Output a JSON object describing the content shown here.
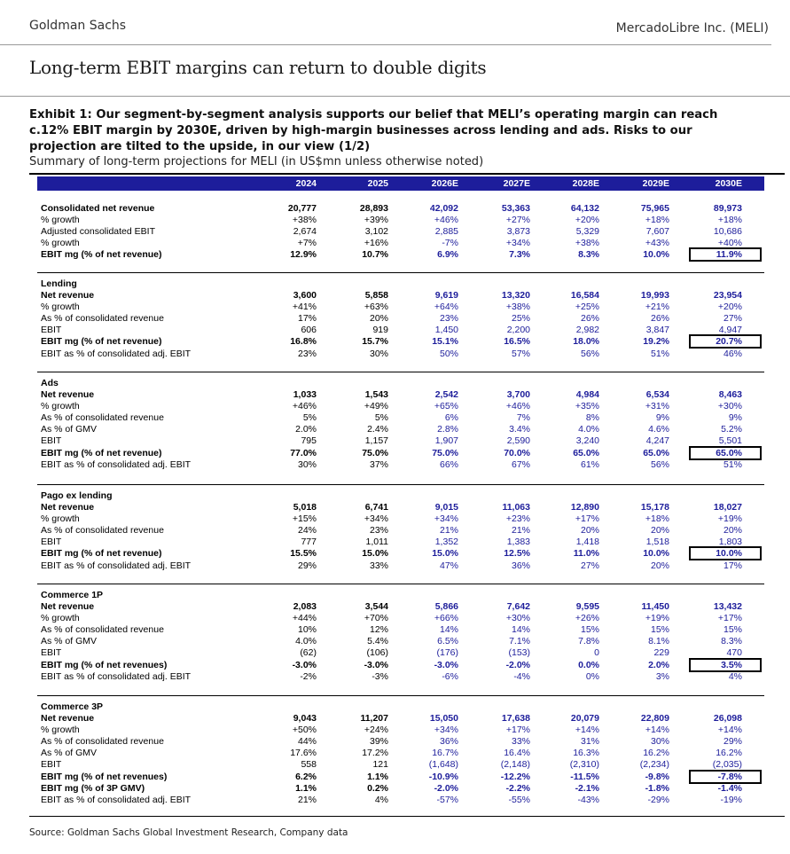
{
  "header": {
    "brand": "Goldman Sachs",
    "company": "MercadoLibre Inc. (MELI)"
  },
  "page_title": "Long-term EBIT margins can return to double digits",
  "exhibit": "Exhibit 1: Our segment-by-segment analysis supports our belief that MELI’s operating margin can reach c.12% EBIT margin by 2030E, driven by high-margin businesses across lending and ads. Risks to our projection are tilted to the upside, in our view (1/2)",
  "subtitle": "Summary of long-term projections for MELI (in US$mn unless otherwise noted)",
  "columns": [
    "2024",
    "2025",
    "2026E",
    "2027E",
    "2028E",
    "2029E",
    "2030E"
  ],
  "sections": [
    {
      "title": "",
      "rows": [
        {
          "label": "Consolidated net revenue",
          "bold": true,
          "values": [
            "20,777",
            "28,893",
            "42,092",
            "53,363",
            "64,132",
            "75,965",
            "89,973"
          ]
        },
        {
          "label": "% growth",
          "values": [
            "+38%",
            "+39%",
            "+46%",
            "+27%",
            "+20%",
            "+18%",
            "+18%"
          ]
        },
        {
          "label": "Adjusted consolidated EBIT",
          "values": [
            "2,674",
            "3,102",
            "2,885",
            "3,873",
            "5,329",
            "7,607",
            "10,686"
          ]
        },
        {
          "label": "% growth",
          "values": [
            "+7%",
            "+16%",
            "-7%",
            "+34%",
            "+38%",
            "+43%",
            "+40%"
          ]
        },
        {
          "label": "EBIT mg (% of net revenue)",
          "bold": true,
          "highlight": true,
          "values": [
            "12.9%",
            "10.7%",
            "6.9%",
            "7.3%",
            "8.3%",
            "10.0%",
            "11.9%"
          ]
        }
      ]
    },
    {
      "title": "Lending",
      "rows": [
        {
          "label": "Net revenue",
          "bold": true,
          "values": [
            "3,600",
            "5,858",
            "9,619",
            "13,320",
            "16,584",
            "19,993",
            "23,954"
          ]
        },
        {
          "label": "% growth",
          "values": [
            "+41%",
            "+63%",
            "+64%",
            "+38%",
            "+25%",
            "+21%",
            "+20%"
          ]
        },
        {
          "label": "As % of consolidated revenue",
          "values": [
            "17%",
            "20%",
            "23%",
            "25%",
            "26%",
            "26%",
            "27%"
          ]
        },
        {
          "label": "EBIT",
          "values": [
            "606",
            "919",
            "1,450",
            "2,200",
            "2,982",
            "3,847",
            "4,947"
          ]
        },
        {
          "label": "EBIT mg (% of net revenue)",
          "bold": true,
          "highlight": true,
          "values": [
            "16.8%",
            "15.7%",
            "15.1%",
            "16.5%",
            "18.0%",
            "19.2%",
            "20.7%"
          ]
        },
        {
          "label": "EBIT as % of consolidated adj. EBIT",
          "values": [
            "23%",
            "30%",
            "50%",
            "57%",
            "56%",
            "51%",
            "46%"
          ]
        }
      ]
    },
    {
      "title": "Ads",
      "rows": [
        {
          "label": "Net revenue",
          "bold": true,
          "values": [
            "1,033",
            "1,543",
            "2,542",
            "3,700",
            "4,984",
            "6,534",
            "8,463"
          ]
        },
        {
          "label": "% growth",
          "values": [
            "+46%",
            "+49%",
            "+65%",
            "+46%",
            "+35%",
            "+31%",
            "+30%"
          ]
        },
        {
          "label": "As % of consolidated revenue",
          "values": [
            "5%",
            "5%",
            "6%",
            "7%",
            "8%",
            "9%",
            "9%"
          ]
        },
        {
          "label": "As % of GMV",
          "values": [
            "2.0%",
            "2.4%",
            "2.8%",
            "3.4%",
            "4.0%",
            "4.6%",
            "5.2%"
          ]
        },
        {
          "label": "EBIT",
          "values": [
            "795",
            "1,157",
            "1,907",
            "2,590",
            "3,240",
            "4,247",
            "5,501"
          ]
        },
        {
          "label": "EBIT mg  (% of net revenue)",
          "bold": true,
          "highlight": true,
          "values": [
            "77.0%",
            "75.0%",
            "75.0%",
            "70.0%",
            "65.0%",
            "65.0%",
            "65.0%"
          ]
        },
        {
          "label": "EBIT as % of consolidated adj. EBIT",
          "values": [
            "30%",
            "37%",
            "66%",
            "67%",
            "61%",
            "56%",
            "51%"
          ]
        }
      ]
    },
    {
      "title": "Pago ex lending",
      "rows": [
        {
          "label": "Net revenue",
          "bold": true,
          "values": [
            "5,018",
            "6,741",
            "9,015",
            "11,063",
            "12,890",
            "15,178",
            "18,027"
          ]
        },
        {
          "label": "% growth",
          "values": [
            "+15%",
            "+34%",
            "+34%",
            "+23%",
            "+17%",
            "+18%",
            "+19%"
          ]
        },
        {
          "label": "As % of consolidated revenue",
          "values": [
            "24%",
            "23%",
            "21%",
            "21%",
            "20%",
            "20%",
            "20%"
          ]
        },
        {
          "label": "EBIT",
          "values": [
            "777",
            "1,011",
            "1,352",
            "1,383",
            "1,418",
            "1,518",
            "1,803"
          ]
        },
        {
          "label": "EBIT mg (% of net revenue)",
          "bold": true,
          "highlight": true,
          "values": [
            "15.5%",
            "15.0%",
            "15.0%",
            "12.5%",
            "11.0%",
            "10.0%",
            "10.0%"
          ]
        },
        {
          "label": "EBIT as % of consolidated adj. EBIT",
          "values": [
            "29%",
            "33%",
            "47%",
            "36%",
            "27%",
            "20%",
            "17%"
          ]
        }
      ]
    },
    {
      "title": "Commerce 1P",
      "rows": [
        {
          "label": "Net revenue",
          "bold": true,
          "values": [
            "2,083",
            "3,544",
            "5,866",
            "7,642",
            "9,595",
            "11,450",
            "13,432"
          ]
        },
        {
          "label": "% growth",
          "values": [
            "+44%",
            "+70%",
            "+66%",
            "+30%",
            "+26%",
            "+19%",
            "+17%"
          ]
        },
        {
          "label": "As % of consolidated revenue",
          "values": [
            "10%",
            "12%",
            "14%",
            "14%",
            "15%",
            "15%",
            "15%"
          ]
        },
        {
          "label": "As % of GMV",
          "values": [
            "4.0%",
            "5.4%",
            "6.5%",
            "7.1%",
            "7.8%",
            "8.1%",
            "8.3%"
          ]
        },
        {
          "label": "EBIT",
          "values": [
            "(62)",
            "(106)",
            "(176)",
            "(153)",
            "0",
            "229",
            "470"
          ]
        },
        {
          "label": "EBIT mg (% of net revenues)",
          "bold": true,
          "highlight": true,
          "values": [
            "-3.0%",
            "-3.0%",
            "-3.0%",
            "-2.0%",
            "0.0%",
            "2.0%",
            "3.5%"
          ]
        },
        {
          "label": "EBIT as % of consolidated adj. EBIT",
          "values": [
            "-2%",
            "-3%",
            "-6%",
            "-4%",
            "0%",
            "3%",
            "4%"
          ]
        }
      ]
    },
    {
      "title": "Commerce 3P",
      "rows": [
        {
          "label": "Net revenue",
          "bold": true,
          "values": [
            "9,043",
            "11,207",
            "15,050",
            "17,638",
            "20,079",
            "22,809",
            "26,098"
          ]
        },
        {
          "label": "% growth",
          "values": [
            "+50%",
            "+24%",
            "+34%",
            "+17%",
            "+14%",
            "+14%",
            "+14%"
          ]
        },
        {
          "label": "As % of consolidated revenue",
          "values": [
            "44%",
            "39%",
            "36%",
            "33%",
            "31%",
            "30%",
            "29%"
          ]
        },
        {
          "label": "As % of GMV",
          "values": [
            "17.6%",
            "17.2%",
            "16.7%",
            "16.4%",
            "16.3%",
            "16.2%",
            "16.2%"
          ]
        },
        {
          "label": "EBIT",
          "values": [
            "558",
            "121",
            "(1,648)",
            "(2,148)",
            "(2,310)",
            "(2,234)",
            "(2,035)"
          ]
        },
        {
          "label": "EBIT mg (% of net revenues)",
          "bold": true,
          "highlight": true,
          "values": [
            "6.2%",
            "1.1%",
            "-10.9%",
            "-12.2%",
            "-11.5%",
            "-9.8%",
            "-7.8%"
          ]
        },
        {
          "label": "EBIT mg (% of 3P GMV)",
          "bold": true,
          "values": [
            "1.1%",
            "0.2%",
            "-2.0%",
            "-2.2%",
            "-2.1%",
            "-1.8%",
            "-1.4%"
          ]
        },
        {
          "label": "EBIT as % of consolidated adj. EBIT",
          "values": [
            "21%",
            "4%",
            "-57%",
            "-55%",
            "-43%",
            "-29%",
            "-19%"
          ]
        }
      ]
    }
  ],
  "source": "Source: Goldman Sachs Global Investment Research, Company data",
  "colors": {
    "header_bg": "#1d1d9b",
    "estimate_text": "#1d1d9b"
  }
}
